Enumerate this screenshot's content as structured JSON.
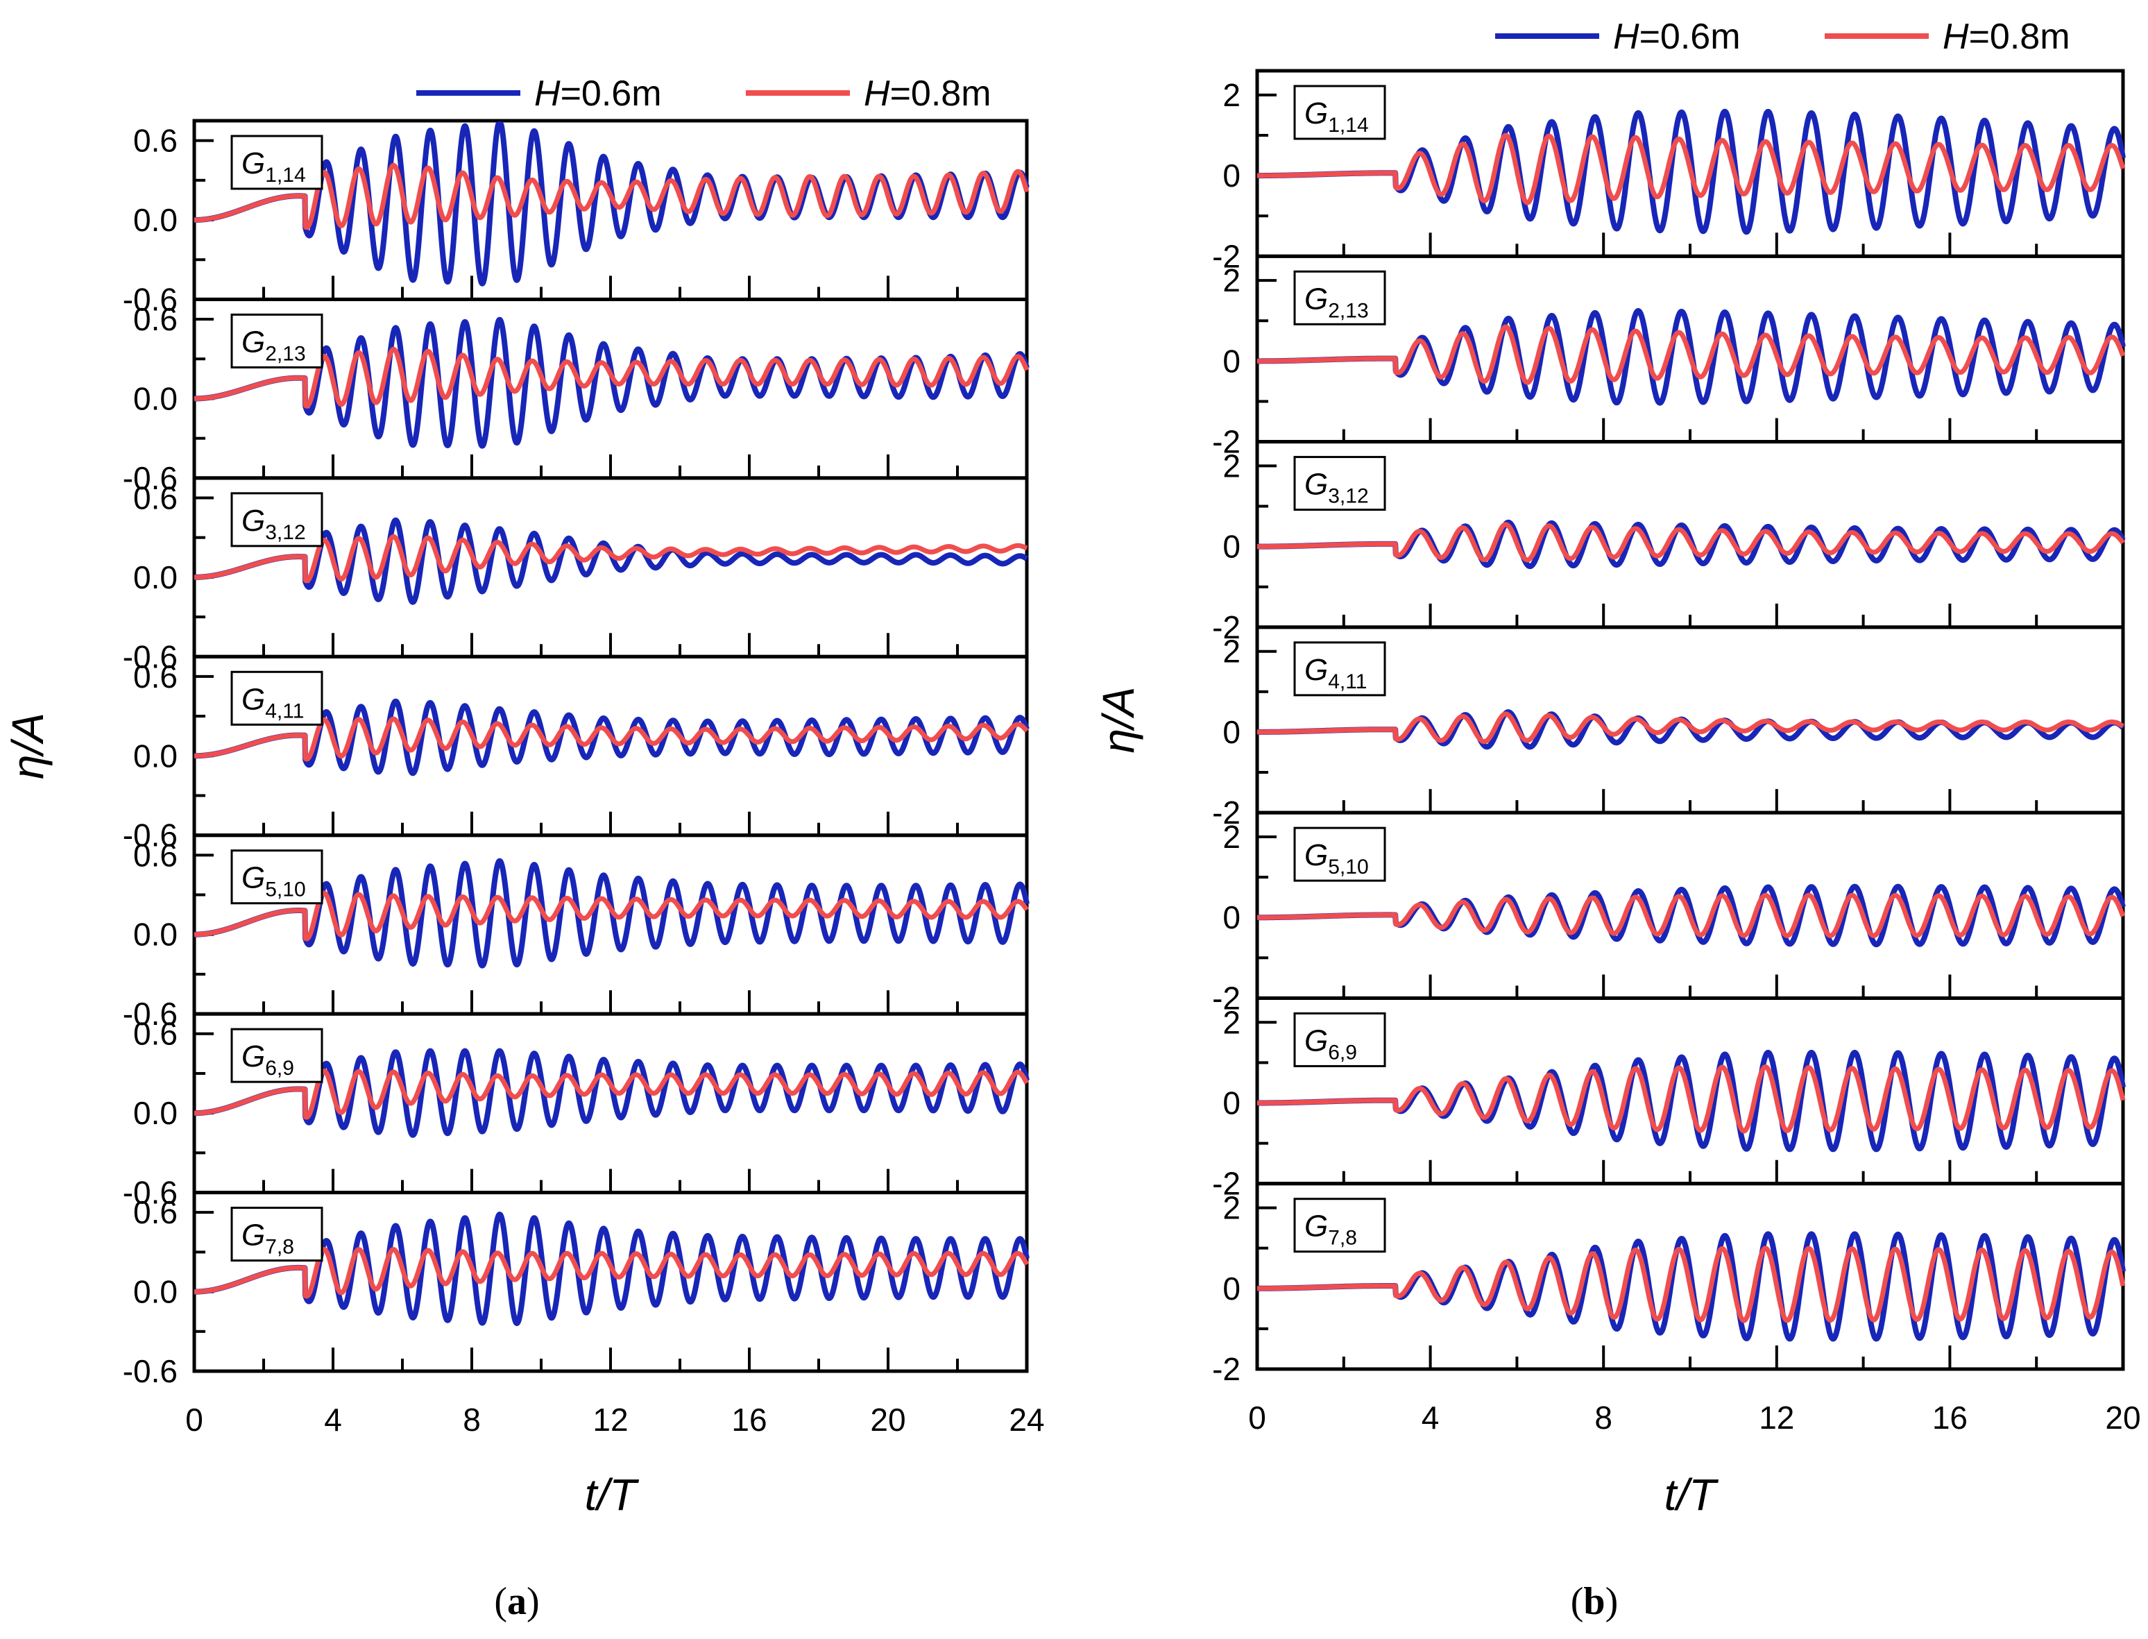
{
  "colors": {
    "h06": "#1826b8",
    "h08": "#f04e4e",
    "axis": "#000000"
  },
  "figure": {
    "captions": [
      {
        "open": "(",
        "letter": "a",
        "close": ")"
      },
      {
        "open": "(",
        "letter": "b",
        "close": ")"
      }
    ]
  },
  "chart_data": [
    {
      "type": "line",
      "panel": "a",
      "caption": "(a)",
      "ylabel": "η/A",
      "xlabel": "t/T",
      "xlim": [
        0,
        24
      ],
      "ylim": [
        -0.6,
        0.75
      ],
      "xticks": [
        "0",
        "4",
        "8",
        "12",
        "16",
        "20",
        "24"
      ],
      "yticks": [
        "-0.6",
        "0.0",
        "0.6"
      ],
      "legend": [
        {
          "var": "H",
          "value": "=0.6m",
          "color": "#1826b8"
        },
        {
          "var": "H",
          "value": "=0.8m",
          "color": "#f04e4e"
        }
      ],
      "gauges": [
        {
          "label": "G",
          "sub": "1,14",
          "h06": {
            "amp": [
              0.0,
              0.22,
              0.55,
              0.62,
              0.3,
              0.16,
              0.15,
              0.16,
              0.17
            ],
            "mean": [
              0.0,
              0.14,
              0.1,
              0.13,
              0.16,
              0.17,
              0.17,
              0.18,
              0.19
            ]
          },
          "h08": {
            "amp": [
              0.0,
              0.2,
              0.22,
              0.14,
              0.09,
              0.13,
              0.15,
              0.14,
              0.15
            ],
            "mean": [
              0.0,
              0.14,
              0.2,
              0.17,
              0.19,
              0.18,
              0.18,
              0.19,
              0.22
            ]
          }
        },
        {
          "label": "G",
          "sub": "2,13",
          "h06": {
            "amp": [
              0.0,
              0.2,
              0.45,
              0.48,
              0.25,
              0.14,
              0.14,
              0.15,
              0.16
            ],
            "mean": [
              0.0,
              0.12,
              0.1,
              0.12,
              0.15,
              0.16,
              0.16,
              0.16,
              0.18
            ]
          },
          "h08": {
            "amp": [
              0.0,
              0.18,
              0.2,
              0.12,
              0.08,
              0.09,
              0.09,
              0.1,
              0.1
            ],
            "mean": [
              0.0,
              0.12,
              0.18,
              0.17,
              0.19,
              0.2,
              0.2,
              0.2,
              0.22
            ]
          }
        },
        {
          "label": "G",
          "sub": "3,12",
          "h06": {
            "amp": [
              0.0,
              0.18,
              0.32,
              0.22,
              0.1,
              0.04,
              0.03,
              0.03,
              0.03
            ],
            "mean": [
              0.0,
              0.12,
              0.12,
              0.14,
              0.15,
              0.14,
              0.14,
              0.14,
              0.13
            ]
          },
          "h08": {
            "amp": [
              0.0,
              0.15,
              0.15,
              0.08,
              0.04,
              0.02,
              0.02,
              0.02,
              0.02
            ],
            "mean": [
              0.0,
              0.12,
              0.16,
              0.18,
              0.18,
              0.19,
              0.2,
              0.21,
              0.22
            ]
          }
        },
        {
          "label": "G",
          "sub": "4,11",
          "h06": {
            "amp": [
              0.0,
              0.18,
              0.28,
              0.2,
              0.14,
              0.12,
              0.13,
              0.13,
              0.13
            ],
            "mean": [
              0.0,
              0.12,
              0.14,
              0.15,
              0.14,
              0.14,
              0.14,
              0.15,
              0.16
            ]
          },
          "h08": {
            "amp": [
              0.0,
              0.15,
              0.12,
              0.08,
              0.06,
              0.05,
              0.05,
              0.05,
              0.05
            ],
            "mean": [
              0.0,
              0.12,
              0.16,
              0.16,
              0.15,
              0.15,
              0.16,
              0.17,
              0.19
            ]
          }
        },
        {
          "label": "G",
          "sub": "5,10",
          "h06": {
            "amp": [
              0.0,
              0.2,
              0.36,
              0.4,
              0.28,
              0.22,
              0.21,
              0.21,
              0.22
            ],
            "mean": [
              0.0,
              0.14,
              0.14,
              0.16,
              0.16,
              0.16,
              0.16,
              0.16,
              0.16
            ]
          },
          "h08": {
            "amp": [
              0.0,
              0.18,
              0.12,
              0.09,
              0.07,
              0.06,
              0.06,
              0.06,
              0.06
            ],
            "mean": [
              0.0,
              0.14,
              0.17,
              0.19,
              0.2,
              0.2,
              0.2,
              0.19,
              0.19
            ]
          }
        },
        {
          "label": "G",
          "sub": "6,9",
          "h06": {
            "amp": [
              0.0,
              0.2,
              0.32,
              0.3,
              0.22,
              0.17,
              0.17,
              0.17,
              0.18
            ],
            "mean": [
              0.0,
              0.14,
              0.15,
              0.17,
              0.18,
              0.19,
              0.19,
              0.19,
              0.19
            ]
          },
          "h08": {
            "amp": [
              0.0,
              0.18,
              0.12,
              0.08,
              0.07,
              0.07,
              0.07,
              0.08,
              0.08
            ],
            "mean": [
              0.0,
              0.14,
              0.19,
              0.2,
              0.22,
              0.22,
              0.22,
              0.22,
              0.23
            ]
          }
        },
        {
          "label": "G",
          "sub": "7,8",
          "h06": {
            "amp": [
              0.0,
              0.2,
              0.35,
              0.42,
              0.3,
              0.24,
              0.23,
              0.22,
              0.22
            ],
            "mean": [
              0.0,
              0.14,
              0.16,
              0.17,
              0.17,
              0.18,
              0.18,
              0.18,
              0.18
            ]
          },
          "h08": {
            "amp": [
              0.0,
              0.18,
              0.14,
              0.1,
              0.09,
              0.08,
              0.08,
              0.08,
              0.08
            ],
            "mean": [
              0.0,
              0.14,
              0.18,
              0.19,
              0.2,
              0.2,
              0.2,
              0.21,
              0.21
            ]
          }
        }
      ]
    },
    {
      "type": "line",
      "panel": "b",
      "caption": "(b)",
      "ylabel": "η/A",
      "xlabel": "t/T",
      "xlim": [
        0,
        20
      ],
      "ylim": [
        -2,
        2.6
      ],
      "xticks": [
        "0",
        "4",
        "8",
        "12",
        "16",
        "20"
      ],
      "yticks": [
        "-2",
        "0",
        "2"
      ],
      "legend": [
        {
          "var": "H",
          "value": "=0.6m",
          "color": "#1826b8"
        },
        {
          "var": "H",
          "value": "=0.8m",
          "color": "#f04e4e"
        }
      ],
      "gauges": [
        {
          "label": "G",
          "sub": "1,14",
          "h06": {
            "amp": [
              0.0,
              0.3,
              1.1,
              1.45,
              1.5,
              1.4,
              1.25,
              1.05
            ],
            "mean": [
              0.0,
              0.05,
              0.1,
              0.1,
              0.1,
              0.1,
              0.1,
              0.1
            ]
          },
          "h08": {
            "amp": [
              0.0,
              0.3,
              0.85,
              0.75,
              0.65,
              0.6,
              0.55,
              0.55
            ],
            "mean": [
              0.0,
              0.05,
              0.15,
              0.2,
              0.2,
              0.2,
              0.2,
              0.2
            ]
          }
        },
        {
          "label": "G",
          "sub": "2,13",
          "h06": {
            "amp": [
              0.0,
              0.3,
              0.95,
              1.15,
              1.1,
              1.0,
              0.9,
              0.8
            ],
            "mean": [
              0.0,
              0.05,
              0.1,
              0.1,
              0.1,
              0.1,
              0.1,
              0.1
            ]
          },
          "h08": {
            "amp": [
              0.0,
              0.3,
              0.7,
              0.6,
              0.5,
              0.45,
              0.42,
              0.45
            ],
            "mean": [
              0.0,
              0.05,
              0.15,
              0.15,
              0.15,
              0.15,
              0.15,
              0.15
            ]
          }
        },
        {
          "label": "G",
          "sub": "3,12",
          "h06": {
            "amp": [
              0.0,
              0.25,
              0.55,
              0.5,
              0.45,
              0.4,
              0.38,
              0.36
            ],
            "mean": [
              0.0,
              0.05,
              0.05,
              0.05,
              0.05,
              0.05,
              0.05,
              0.05
            ]
          },
          "h08": {
            "amp": [
              0.0,
              0.25,
              0.45,
              0.35,
              0.28,
              0.24,
              0.22,
              0.22
            ],
            "mean": [
              0.0,
              0.05,
              0.1,
              0.1,
              0.1,
              0.1,
              0.1,
              0.1
            ]
          }
        },
        {
          "label": "G",
          "sub": "4,11",
          "h06": {
            "amp": [
              0.0,
              0.22,
              0.45,
              0.3,
              0.22,
              0.2,
              0.18,
              0.18
            ],
            "mean": [
              0.0,
              0.05,
              0.05,
              0.05,
              0.05,
              0.05,
              0.05,
              0.05
            ]
          },
          "h08": {
            "amp": [
              0.0,
              0.22,
              0.35,
              0.18,
              0.12,
              0.1,
              0.1,
              0.1
            ],
            "mean": [
              0.0,
              0.05,
              0.1,
              0.15,
              0.15,
              0.15,
              0.15,
              0.15
            ]
          }
        },
        {
          "label": "G",
          "sub": "5,10",
          "h06": {
            "amp": [
              0.0,
              0.2,
              0.45,
              0.6,
              0.7,
              0.72,
              0.7,
              0.65
            ],
            "mean": [
              0.0,
              0.05,
              0.05,
              0.05,
              0.05,
              0.05,
              0.05,
              0.05
            ]
          },
          "h08": {
            "amp": [
              0.0,
              0.2,
              0.4,
              0.45,
              0.5,
              0.5,
              0.48,
              0.45
            ],
            "mean": [
              0.0,
              0.05,
              0.05,
              0.05,
              0.05,
              0.05,
              0.05,
              0.05
            ]
          }
        },
        {
          "label": "G",
          "sub": "6,9",
          "h06": {
            "amp": [
              0.0,
              0.2,
              0.55,
              1.0,
              1.2,
              1.2,
              1.15,
              1.05
            ],
            "mean": [
              0.0,
              0.05,
              0.05,
              0.05,
              0.05,
              0.05,
              0.05,
              0.05
            ]
          },
          "h08": {
            "amp": [
              0.0,
              0.2,
              0.5,
              0.75,
              0.8,
              0.75,
              0.72,
              0.7
            ],
            "mean": [
              0.0,
              0.05,
              0.1,
              0.1,
              0.1,
              0.1,
              0.1,
              0.1
            ]
          }
        },
        {
          "label": "G",
          "sub": "7,8",
          "h06": {
            "amp": [
              0.0,
              0.2,
              0.6,
              1.1,
              1.3,
              1.3,
              1.25,
              1.15
            ],
            "mean": [
              0.0,
              0.05,
              0.05,
              0.05,
              0.05,
              0.05,
              0.05,
              0.05
            ]
          },
          "h08": {
            "amp": [
              0.0,
              0.2,
              0.55,
              0.85,
              0.9,
              0.88,
              0.85,
              0.8
            ],
            "mean": [
              0.0,
              0.05,
              0.1,
              0.1,
              0.1,
              0.1,
              0.1,
              0.1
            ]
          }
        }
      ]
    }
  ]
}
